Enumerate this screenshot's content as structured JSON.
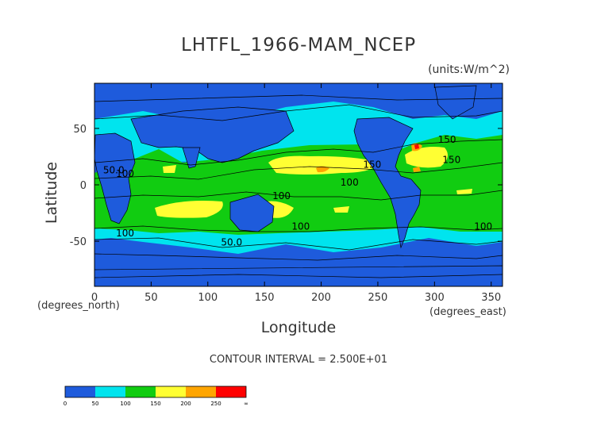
{
  "chart_data": {
    "type": "heatmap",
    "title": "LHTFL_1966-MAM_NCEP",
    "units": "(units:W/m^2)",
    "xlabel": "Longitude",
    "ylabel": "Latitude",
    "x_unit_label": "(degrees_north)",
    "x_unit_label_2": "(degrees_east)",
    "contour_interval": "CONTOUR INTERVAL = 2.500E+01",
    "xlim": [
      0,
      360
    ],
    "ylim": [
      -90,
      90
    ],
    "x_ticks": [
      0,
      50,
      100,
      150,
      200,
      250,
      300,
      350
    ],
    "y_ticks": [
      -50,
      0,
      50
    ],
    "colorbar": {
      "labels": [
        "0",
        "50",
        "100",
        "150",
        "200",
        "250",
        "∞"
      ],
      "colors": [
        "#1e5bdc",
        "#00e4ee",
        "#11cc11",
        "#ffff33",
        "#ffa500",
        "#ff0000"
      ]
    },
    "contour_labels": [
      {
        "text": "150",
        "lon": 311,
        "lat": 40
      },
      {
        "text": "150",
        "lon": 315,
        "lat": 22
      },
      {
        "text": "50.0",
        "lon": 17,
        "lat": 13
      },
      {
        "text": "100",
        "lon": 27,
        "lat": 10
      },
      {
        "text": "150",
        "lon": 245,
        "lat": 18
      },
      {
        "text": "100",
        "lon": 225,
        "lat": 2
      },
      {
        "text": "100",
        "lon": 165,
        "lat": -10
      },
      {
        "text": "100",
        "lon": 182,
        "lat": -37
      },
      {
        "text": "100",
        "lon": 27,
        "lat": -43
      },
      {
        "text": "100",
        "lon": 343,
        "lat": -37
      },
      {
        "text": "50.0",
        "lon": 121,
        "lat": -51
      }
    ]
  }
}
